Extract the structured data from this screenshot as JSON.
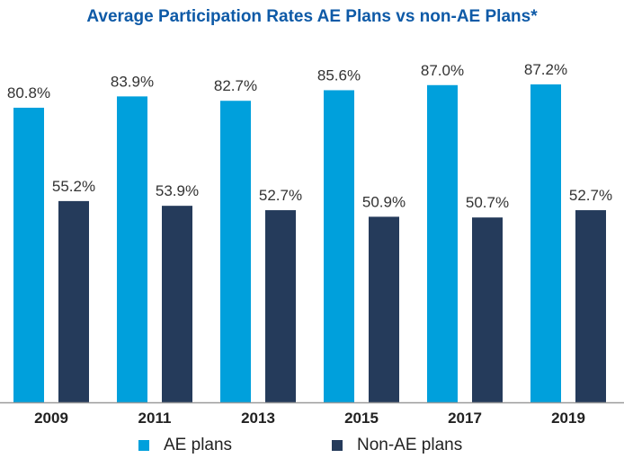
{
  "chart_data": {
    "type": "bar",
    "title": "Average Participation Rates AE Plans vs non-AE Plans*",
    "categories": [
      "2009",
      "2011",
      "2013",
      "2015",
      "2017",
      "2019"
    ],
    "series": [
      {
        "name": "AE plans",
        "color": "#00a0dc",
        "values": [
          80.8,
          83.9,
          82.7,
          85.6,
          87.0,
          87.2
        ],
        "labels": [
          "80.8%",
          "83.9%",
          "82.7%",
          "85.6%",
          "87.0%",
          "87.2%"
        ]
      },
      {
        "name": "Non-AE plans",
        "color": "#253b5b",
        "values": [
          55.2,
          53.9,
          52.7,
          50.9,
          50.7,
          52.7
        ],
        "labels": [
          "55.2%",
          "53.9%",
          "52.7%",
          "50.9%",
          "50.7%",
          "52.7%"
        ]
      }
    ],
    "ylim": [
      0,
      100
    ],
    "grid": false,
    "legend": "bottom",
    "title_color": "#0e5aa7"
  }
}
